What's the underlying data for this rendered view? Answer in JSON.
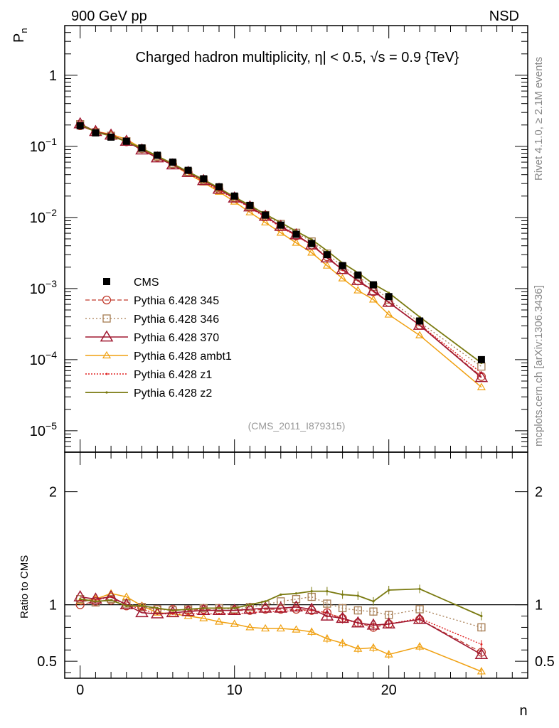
{
  "header": {
    "left": "900 GeV pp",
    "right": "NSD"
  },
  "side_labels": {
    "rivet": "Rivet 4.1.0, ≥ 2.1M events",
    "mcplots": "mcplots.cern.ch [arXiv:1306.3436]"
  },
  "watermark": "(CMS_2011_I879315)",
  "colors": {
    "CMS": "#000000",
    "p345": "#c0392b",
    "p346": "#a67c52",
    "p370": "#a01830",
    "ambt1": "#f0a010",
    "z1": "#e02020",
    "z2": "#7a7a10"
  },
  "chart_data": [
    {
      "type": "scatter",
      "panel": "main",
      "title": "Charged hadron multiplicity, |η| < 0.5, √s = 0.9 {TeV}",
      "title_parts": {
        "a": "Charged hadron multiplicity, ",
        "b": "η| < 0.5, ",
        "c": "√s",
        "d": " = 0.9 {TeV}"
      },
      "ylabel": "P",
      "ylabel_sub": "n",
      "xlabel": "n",
      "yscale": "log",
      "ylim": [
        5e-06,
        5
      ],
      "xlim": [
        -1,
        29
      ],
      "ytick_labels": [
        {
          "value": 1,
          "base": "1",
          "exp": ""
        },
        {
          "value": 0.1,
          "base": "10",
          "exp": "−1"
        },
        {
          "value": 0.01,
          "base": "10",
          "exp": "−2"
        },
        {
          "value": 0.001,
          "base": "10",
          "exp": "−3"
        },
        {
          "value": 0.0001,
          "base": "10",
          "exp": "−4"
        },
        {
          "value": 1e-05,
          "base": "10",
          "exp": "−5"
        }
      ],
      "x": [
        0,
        1,
        2,
        3,
        4,
        5,
        6,
        7,
        8,
        9,
        10,
        11,
        12,
        13,
        14,
        15,
        16,
        17,
        18,
        19,
        20,
        22,
        26
      ],
      "series": [
        {
          "key": "CMS",
          "name": "CMS",
          "values": [
            0.195,
            0.155,
            0.135,
            0.118,
            0.095,
            0.075,
            0.06,
            0.046,
            0.035,
            0.027,
            0.02,
            0.0148,
            0.0108,
            0.0078,
            0.0058,
            0.0043,
            0.003,
            0.0021,
            0.00155,
            0.00113,
            0.00077,
            0.00035,
            0.0001
          ]
        },
        {
          "key": "p345",
          "name": "Pythia 6.428 345",
          "values": [
            0.195,
            0.16,
            0.14,
            0.116,
            0.093,
            0.071,
            0.056,
            0.043,
            0.033,
            0.025,
            0.0188,
            0.014,
            0.0103,
            0.0075,
            0.0055,
            0.0041,
            0.0028,
            0.00184,
            0.00128,
            0.0009,
            0.00064,
            0.000306,
            5.8e-05
          ]
        },
        {
          "key": "p346",
          "name": "Pythia 6.428 346",
          "values": [
            0.205,
            0.158,
            0.141,
            0.118,
            0.093,
            0.072,
            0.057,
            0.044,
            0.034,
            0.026,
            0.0192,
            0.0145,
            0.0108,
            0.0081,
            0.0061,
            0.0046,
            0.0031,
            0.00204,
            0.00147,
            0.00106,
            0.0007,
            0.000336,
            8e-05
          ]
        },
        {
          "key": "p370",
          "name": "Pythia 6.428 370",
          "values": [
            0.208,
            0.162,
            0.144,
            0.118,
            0.089,
            0.069,
            0.055,
            0.043,
            0.033,
            0.025,
            0.0188,
            0.0141,
            0.0104,
            0.0075,
            0.0057,
            0.0041,
            0.0027,
            0.00185,
            0.0013,
            0.00093,
            0.00064,
            0.000305,
            5.6e-05
          ]
        },
        {
          "key": "ambt1",
          "name": "Pythia 6.428 ambt1",
          "values": [
            0.2,
            0.163,
            0.148,
            0.126,
            0.094,
            0.07,
            0.055,
            0.041,
            0.031,
            0.023,
            0.0167,
            0.0118,
            0.0085,
            0.0061,
            0.0044,
            0.0032,
            0.0021,
            0.00139,
            0.00094,
            0.0007,
            0.00043,
            0.00022,
            4.1e-05
          ]
        },
        {
          "key": "z1",
          "name": "Pythia 6.428 z1",
          "values": [
            0.203,
            0.161,
            0.145,
            0.118,
            0.091,
            0.069,
            0.055,
            0.042,
            0.032,
            0.024,
            0.0184,
            0.0137,
            0.0101,
            0.0073,
            0.0055,
            0.0041,
            0.0028,
            0.00182,
            0.0013,
            0.00092,
            0.00064,
            0.00031,
            6.5e-05
          ]
        },
        {
          "key": "z2",
          "name": "Pythia 6.428 z2",
          "values": [
            0.205,
            0.159,
            0.14,
            0.117,
            0.094,
            0.073,
            0.057,
            0.044,
            0.034,
            0.026,
            0.0194,
            0.0148,
            0.0111,
            0.0085,
            0.0064,
            0.0049,
            0.0034,
            0.00229,
            0.00167,
            0.00116,
            0.00087,
            0.000399,
            9e-05
          ]
        }
      ]
    },
    {
      "type": "line",
      "panel": "ratio",
      "ylabel": "Ratio to CMS",
      "xlabel": "n",
      "ylim": [
        0.35,
        2.35
      ],
      "xlim": [
        -1,
        29
      ],
      "yticks": [
        0.5,
        1,
        2
      ],
      "ytick_labels": [
        "0.5",
        "1",
        "2"
      ],
      "xticks": [
        0,
        10,
        20
      ],
      "xtick_labels": [
        "0",
        "10",
        "20"
      ],
      "x": [
        0,
        1,
        2,
        3,
        4,
        5,
        6,
        7,
        8,
        9,
        10,
        11,
        12,
        13,
        14,
        15,
        16,
        17,
        18,
        19,
        20,
        22,
        26
      ],
      "series": [
        {
          "key": "p345",
          "values": [
            1.0,
            1.03,
            1.04,
            0.99,
            0.98,
            0.96,
            0.96,
            0.95,
            0.96,
            0.95,
            0.95,
            0.95,
            0.96,
            0.96,
            0.96,
            0.95,
            0.93,
            0.88,
            0.84,
            0.8,
            0.83,
            0.87,
            0.58
          ]
        },
        {
          "key": "p346",
          "values": [
            1.05,
            1.02,
            1.05,
            1.01,
            0.98,
            0.96,
            0.95,
            0.96,
            0.97,
            0.97,
            0.96,
            0.98,
            1.0,
            1.03,
            1.05,
            1.07,
            1.01,
            0.97,
            0.95,
            0.94,
            0.91,
            0.96,
            0.8
          ]
        },
        {
          "key": "p370",
          "values": [
            1.07,
            1.05,
            1.07,
            1.0,
            0.93,
            0.92,
            0.93,
            0.94,
            0.95,
            0.95,
            0.95,
            0.96,
            0.97,
            0.97,
            0.98,
            0.96,
            0.9,
            0.88,
            0.84,
            0.82,
            0.83,
            0.87,
            0.56
          ]
        },
        {
          "key": "ambt1",
          "values": [
            1.03,
            1.05,
            1.1,
            1.07,
            0.99,
            0.93,
            0.92,
            0.9,
            0.88,
            0.85,
            0.83,
            0.8,
            0.79,
            0.79,
            0.78,
            0.76,
            0.7,
            0.66,
            0.61,
            0.62,
            0.56,
            0.63,
            0.41
          ]
        },
        {
          "key": "z1",
          "values": [
            1.04,
            1.04,
            1.07,
            1.0,
            0.96,
            0.92,
            0.92,
            0.92,
            0.92,
            0.92,
            0.92,
            0.93,
            0.94,
            0.94,
            0.95,
            0.95,
            0.93,
            0.87,
            0.84,
            0.82,
            0.83,
            0.88,
            0.65
          ]
        },
        {
          "key": "z2",
          "values": [
            1.05,
            1.03,
            1.04,
            0.99,
            0.99,
            0.97,
            0.95,
            0.96,
            0.97,
            0.97,
            0.97,
            1.0,
            1.03,
            1.09,
            1.1,
            1.12,
            1.12,
            1.09,
            1.08,
            1.03,
            1.13,
            1.14,
            0.9
          ]
        }
      ]
    }
  ]
}
